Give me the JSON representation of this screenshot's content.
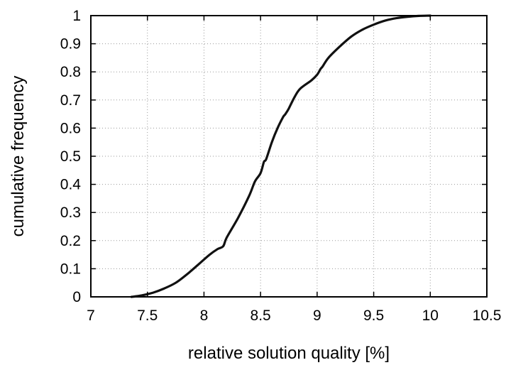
{
  "chart_data": {
    "type": "line",
    "title": "",
    "xlabel": "relative solution quality [%]",
    "ylabel": "cumulative frequency",
    "xlim": [
      7,
      10.5
    ],
    "ylim": [
      0,
      1
    ],
    "xticks": [
      "7",
      "7.5",
      "8",
      "8.5",
      "9",
      "9.5",
      "10",
      "10.5"
    ],
    "yticks": [
      "0",
      "0.1",
      "0.2",
      "0.3",
      "0.4",
      "0.5",
      "0.6",
      "0.7",
      "0.8",
      "0.9",
      "1"
    ],
    "grid": true,
    "legend": "none",
    "series": [
      {
        "color": "#111111",
        "x": [
          7.36,
          7.45,
          7.55,
          7.65,
          7.75,
          7.85,
          7.95,
          8.05,
          8.12,
          8.17,
          8.2,
          8.3,
          8.4,
          8.45,
          8.5,
          8.53,
          8.55,
          8.6,
          8.65,
          8.7,
          8.72,
          8.75,
          8.8,
          8.85,
          8.95,
          9.0,
          9.03,
          9.05,
          9.1,
          9.2,
          9.3,
          9.4,
          9.5,
          9.6,
          9.7,
          9.8,
          9.9,
          10.0
        ],
        "y": [
          0.0,
          0.005,
          0.015,
          0.03,
          0.05,
          0.08,
          0.115,
          0.15,
          0.17,
          0.18,
          0.21,
          0.28,
          0.36,
          0.41,
          0.44,
          0.48,
          0.49,
          0.55,
          0.6,
          0.64,
          0.65,
          0.67,
          0.71,
          0.74,
          0.77,
          0.79,
          0.81,
          0.82,
          0.85,
          0.89,
          0.925,
          0.95,
          0.968,
          0.982,
          0.991,
          0.996,
          0.999,
          1.0
        ]
      }
    ]
  }
}
